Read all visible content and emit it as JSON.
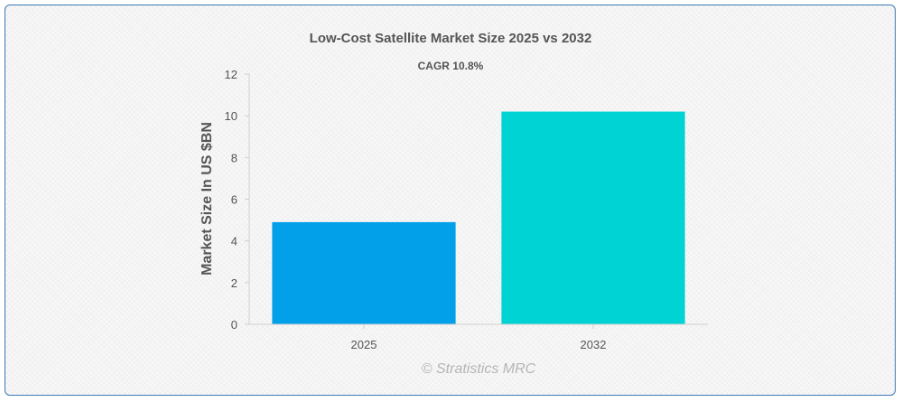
{
  "chart_data": {
    "type": "bar",
    "title": "Low-Cost Satellite Market Size 2025 vs 2032",
    "subtitle": "CAGR 10.8%",
    "ylabel": "Market Size In US $BN",
    "xlabel": "",
    "categories": [
      "2025",
      "2032"
    ],
    "values": [
      4.9,
      10.2
    ],
    "colors": [
      "#03a0ea",
      "#00d3d3"
    ],
    "ylim": [
      0,
      12
    ],
    "yticks": [
      "0",
      "2",
      "4",
      "6",
      "8",
      "10",
      "12"
    ],
    "grid": false,
    "legend": "none"
  },
  "watermark": "© Stratistics MRC",
  "colors": {
    "frame_border": "#3b78b5",
    "axis": "#cfcfcf",
    "text": "#555555"
  }
}
